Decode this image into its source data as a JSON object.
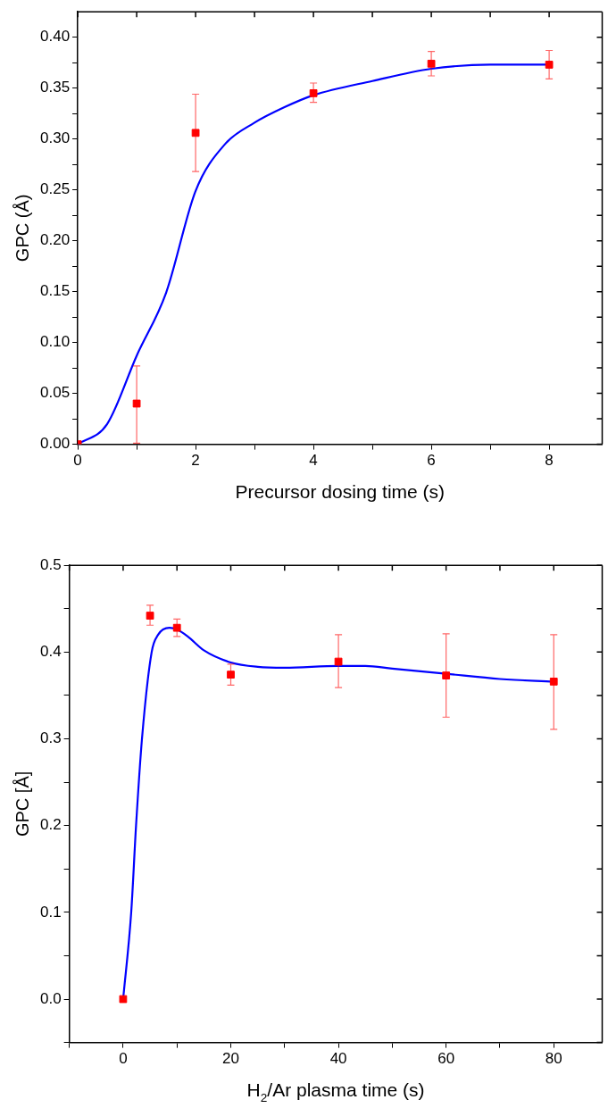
{
  "chart_data": [
    {
      "type": "scatter",
      "xlabel": "Precursor dosing time (s)",
      "ylabel": "GPC (Å)",
      "xlim": [
        0,
        8.9
      ],
      "ylim": [
        0,
        0.425
      ],
      "xticks": [
        0,
        {
          "value": 1,
          "label": null
        },
        2,
        {
          "value": 3,
          "label": null
        },
        4,
        {
          "value": 5,
          "label": null
        },
        6,
        {
          "value": 7,
          "label": null
        },
        8
      ],
      "yticks": [
        {
          "value": 0,
          "label": "0.00"
        },
        {
          "value": 0.025,
          "label": null
        },
        0.05,
        {
          "value": 0.075,
          "label": null
        },
        {
          "value": 0.1,
          "label": "0.10"
        },
        {
          "value": 0.125,
          "label": null
        },
        0.15,
        {
          "value": 0.175,
          "label": null
        },
        {
          "value": 0.2,
          "label": "0.20"
        },
        {
          "value": 0.225,
          "label": null
        },
        0.25,
        {
          "value": 0.275,
          "label": null
        },
        {
          "value": 0.3,
          "label": "0.30"
        },
        {
          "value": 0.325,
          "label": null
        },
        0.35,
        {
          "value": 0.375,
          "label": null
        },
        {
          "value": 0.4,
          "label": "0.40"
        }
      ],
      "grid": false,
      "legend": false,
      "series": [
        {
          "type": "scatter",
          "color": "#ff0000",
          "marker": "square",
          "x": [
            0,
            1,
            2,
            4,
            6,
            8
          ],
          "values": [
            0,
            0.04,
            0.306,
            0.345,
            0.374,
            0.373
          ],
          "errors": [
            null,
            [
              0.001,
              0.077
            ],
            [
              0.268,
              0.344
            ],
            [
              0.336,
              0.355
            ],
            [
              0.362,
              0.386
            ],
            [
              0.359,
              0.387
            ]
          ]
        },
        {
          "type": "line",
          "color": "#0000ff",
          "marker": "none",
          "line_style": "solid",
          "x": [
            0,
            0.5,
            1,
            1.5,
            2,
            2.5,
            3,
            3.5,
            4,
            5,
            6,
            7,
            8
          ],
          "values": [
            0,
            0.02,
            0.087,
            0.149,
            0.249,
            0.295,
            0.316,
            0.331,
            0.343,
            0.357,
            0.369,
            0.373,
            0.373
          ]
        }
      ]
    },
    {
      "type": "scatter",
      "xlabel": "H$_{2}$/Ar plasma time (s)",
      "ylabel": "GPC [Å]",
      "xlim": [
        -10,
        89
      ],
      "ylim": [
        -0.05,
        0.5
      ],
      "xticks": [
        {
          "value": -10,
          "label": null
        },
        0,
        {
          "value": 10,
          "label": null
        },
        20,
        {
          "value": 30,
          "label": null
        },
        40,
        {
          "value": 50,
          "label": null
        },
        60,
        {
          "value": 70,
          "label": null
        },
        80
      ],
      "yticks": [
        {
          "value": -0.05,
          "label": null
        },
        {
          "value": 0,
          "label": "0.0"
        },
        {
          "value": 0.05,
          "label": null
        },
        0.1,
        {
          "value": 0.15,
          "label": null
        },
        0.2,
        {
          "value": 0.25,
          "label": null
        },
        0.3,
        {
          "value": 0.35,
          "label": null
        },
        0.4,
        {
          "value": 0.45,
          "label": null
        },
        0.5
      ],
      "grid": false,
      "legend": false,
      "series": [
        {
          "type": "scatter",
          "color": "#ff0000",
          "marker": "square",
          "x": [
            0,
            5,
            10,
            20,
            40,
            60,
            80
          ],
          "values": [
            0,
            0.442,
            0.428,
            0.374,
            0.389,
            0.373,
            0.366
          ],
          "errors": [
            null,
            [
              0.431,
              0.454
            ],
            [
              0.418,
              0.438
            ],
            [
              0.362,
              0.386
            ],
            [
              0.359,
              0.42
            ],
            [
              0.325,
              0.421
            ],
            [
              0.311,
              0.42
            ]
          ]
        },
        {
          "type": "line",
          "color": "#0000ff",
          "marker": "none",
          "line_style": "solid",
          "x": [
            0,
            1.5,
            2.4,
            3.5,
            5.3,
            6.5,
            8.6,
            10,
            12,
            15,
            20,
            25,
            30,
            40,
            45,
            50,
            60,
            70,
            80
          ],
          "values": [
            0,
            0.1,
            0.2,
            0.3,
            0.4,
            0.42,
            0.428,
            0.426,
            0.418,
            0.402,
            0.388,
            0.383,
            0.382,
            0.384,
            0.384,
            0.381,
            0.375,
            0.369,
            0.366
          ]
        }
      ]
    }
  ]
}
